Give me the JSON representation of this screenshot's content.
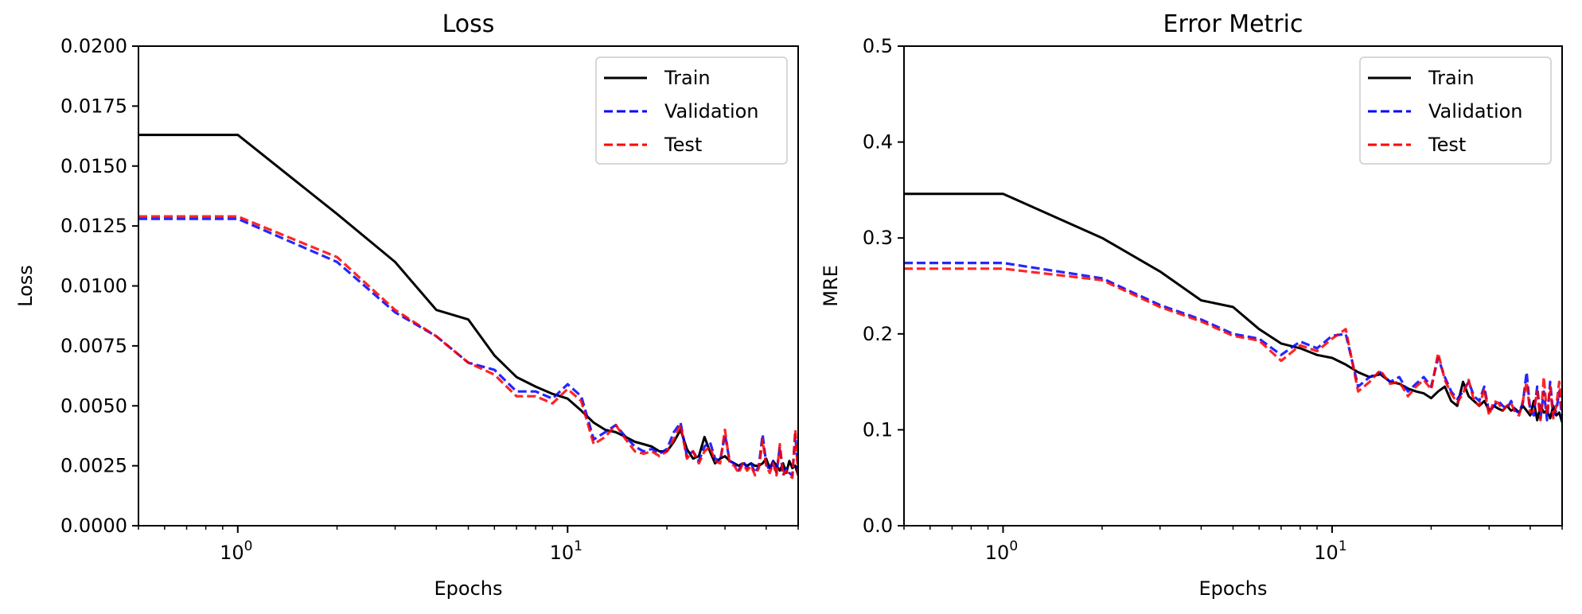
{
  "chart_data": [
    {
      "type": "line",
      "title": "Loss",
      "xlabel": "Epochs",
      "ylabel": "Loss",
      "xscale": "log",
      "xlim": [
        0.5,
        50
      ],
      "ylim": [
        0,
        0.02
      ],
      "yticks": [
        0.0,
        0.0025,
        0.005,
        0.0075,
        0.01,
        0.0125,
        0.015,
        0.0175,
        0.02
      ],
      "ytick_labels": [
        "0.0000",
        "0.0025",
        "0.0050",
        "0.0075",
        "0.0100",
        "0.0125",
        "0.0150",
        "0.0175",
        "0.0200"
      ],
      "xticks": [
        1,
        10
      ],
      "xtick_labels": [
        {
          "base": "10",
          "exp": "0"
        },
        {
          "base": "10",
          "exp": "1"
        }
      ],
      "grid": false,
      "legend": "top-right",
      "series": [
        {
          "name": "Train",
          "color": "#000000",
          "style": "solid",
          "x": [
            0.5,
            1,
            2,
            3,
            4,
            5,
            6,
            7,
            8,
            9,
            10,
            11,
            12,
            13,
            14,
            15,
            16,
            17,
            18,
            19,
            20,
            21,
            22,
            23,
            24,
            25,
            26,
            27,
            28,
            29,
            30,
            31,
            32,
            33,
            34,
            35,
            36,
            37,
            38,
            39,
            40,
            41,
            42,
            43,
            44,
            45,
            46,
            47,
            48,
            49,
            50
          ],
          "y": [
            0.0163,
            0.0163,
            0.013,
            0.011,
            0.009,
            0.0086,
            0.0071,
            0.0062,
            0.0058,
            0.0055,
            0.0053,
            0.0048,
            0.0043,
            0.004,
            0.0039,
            0.0037,
            0.0035,
            0.0034,
            0.0033,
            0.0031,
            0.0031,
            0.0035,
            0.004,
            0.0032,
            0.0028,
            0.0029,
            0.0037,
            0.0031,
            0.0026,
            0.0028,
            0.0029,
            0.0027,
            0.0026,
            0.0025,
            0.0026,
            0.0025,
            0.0026,
            0.0025,
            0.0025,
            0.0026,
            0.0028,
            0.0024,
            0.0027,
            0.0025,
            0.0023,
            0.0026,
            0.0022,
            0.0027,
            0.0024,
            0.0025,
            0.0021
          ]
        },
        {
          "name": "Validation",
          "color": "#0000ff",
          "style": "dashed",
          "x": [
            0.5,
            1,
            2,
            3,
            4,
            5,
            6,
            7,
            8,
            9,
            10,
            11,
            12,
            13,
            14,
            15,
            16,
            17,
            18,
            19,
            20,
            21,
            22,
            23,
            24,
            25,
            26,
            27,
            28,
            29,
            30,
            31,
            32,
            33,
            34,
            35,
            36,
            37,
            38,
            39,
            40,
            41,
            42,
            43,
            44,
            45,
            46,
            47,
            48,
            49,
            50
          ],
          "y": [
            0.0128,
            0.0128,
            0.011,
            0.0089,
            0.0079,
            0.0068,
            0.0065,
            0.0056,
            0.0056,
            0.0053,
            0.0059,
            0.0054,
            0.0036,
            0.0039,
            0.0042,
            0.0037,
            0.0033,
            0.0031,
            0.0032,
            0.003,
            0.0032,
            0.0039,
            0.0043,
            0.0029,
            0.0031,
            0.0027,
            0.0033,
            0.0035,
            0.0028,
            0.0027,
            0.0038,
            0.0027,
            0.0026,
            0.0023,
            0.0027,
            0.0024,
            0.0026,
            0.0022,
            0.0025,
            0.0038,
            0.0026,
            0.0023,
            0.0027,
            0.0022,
            0.0033,
            0.0021,
            0.0024,
            0.0022,
            0.0021,
            0.0038,
            0.0022
          ]
        },
        {
          "name": "Test",
          "color": "#ff0000",
          "style": "dashed",
          "x": [
            0.5,
            1,
            2,
            3,
            4,
            5,
            6,
            7,
            8,
            9,
            10,
            11,
            12,
            13,
            14,
            15,
            16,
            17,
            18,
            19,
            20,
            21,
            22,
            23,
            24,
            25,
            26,
            27,
            28,
            29,
            30,
            31,
            32,
            33,
            34,
            35,
            36,
            37,
            38,
            39,
            40,
            41,
            42,
            43,
            44,
            45,
            46,
            47,
            48,
            49,
            50
          ],
          "y": [
            0.0129,
            0.0129,
            0.0112,
            0.009,
            0.0079,
            0.0068,
            0.0063,
            0.0054,
            0.0054,
            0.0051,
            0.0057,
            0.0052,
            0.0034,
            0.0037,
            0.0042,
            0.0036,
            0.0031,
            0.003,
            0.0031,
            0.0029,
            0.0031,
            0.0036,
            0.0042,
            0.0028,
            0.0031,
            0.0026,
            0.0031,
            0.0033,
            0.0027,
            0.0026,
            0.004,
            0.0026,
            0.0025,
            0.0022,
            0.0026,
            0.0023,
            0.0025,
            0.0021,
            0.0024,
            0.0036,
            0.0025,
            0.0022,
            0.0026,
            0.0021,
            0.0034,
            0.0021,
            0.0023,
            0.0021,
            0.002,
            0.004,
            0.0021
          ]
        }
      ]
    },
    {
      "type": "line",
      "title": "Error Metric",
      "xlabel": "Epochs",
      "ylabel": "MRE",
      "xscale": "log",
      "xlim": [
        0.5,
        50
      ],
      "ylim": [
        0,
        0.5
      ],
      "yticks": [
        0.0,
        0.1,
        0.2,
        0.3,
        0.4,
        0.5
      ],
      "ytick_labels": [
        "0.0",
        "0.1",
        "0.2",
        "0.3",
        "0.4",
        "0.5"
      ],
      "xticks": [
        1,
        10
      ],
      "xtick_labels": [
        {
          "base": "10",
          "exp": "0"
        },
        {
          "base": "10",
          "exp": "1"
        }
      ],
      "grid": false,
      "legend": "top-right",
      "series": [
        {
          "name": "Train",
          "color": "#000000",
          "style": "solid",
          "x": [
            0.5,
            1,
            2,
            3,
            4,
            5,
            6,
            7,
            8,
            9,
            10,
            11,
            12,
            13,
            14,
            15,
            16,
            17,
            18,
            19,
            20,
            21,
            22,
            23,
            24,
            25,
            26,
            27,
            28,
            29,
            30,
            31,
            32,
            33,
            34,
            35,
            36,
            37,
            38,
            39,
            40,
            41,
            42,
            43,
            44,
            45,
            46,
            47,
            48,
            49,
            50
          ],
          "y": [
            0.346,
            0.346,
            0.3,
            0.265,
            0.235,
            0.228,
            0.205,
            0.19,
            0.185,
            0.178,
            0.175,
            0.168,
            0.16,
            0.155,
            0.158,
            0.15,
            0.148,
            0.143,
            0.14,
            0.138,
            0.133,
            0.14,
            0.145,
            0.13,
            0.125,
            0.15,
            0.135,
            0.13,
            0.125,
            0.13,
            0.12,
            0.125,
            0.122,
            0.12,
            0.125,
            0.12,
            0.122,
            0.118,
            0.125,
            0.12,
            0.115,
            0.13,
            0.11,
            0.125,
            0.118,
            0.12,
            0.112,
            0.125,
            0.115,
            0.118,
            0.108
          ]
        },
        {
          "name": "Validation",
          "color": "#0000ff",
          "style": "dashed",
          "x": [
            0.5,
            1,
            2,
            3,
            4,
            5,
            6,
            7,
            8,
            9,
            10,
            11,
            12,
            13,
            14,
            15,
            16,
            17,
            18,
            19,
            20,
            21,
            22,
            23,
            24,
            25,
            26,
            27,
            28,
            29,
            30,
            31,
            32,
            33,
            34,
            35,
            36,
            37,
            38,
            39,
            40,
            41,
            42,
            43,
            44,
            45,
            46,
            47,
            48,
            49,
            50
          ],
          "y": [
            0.274,
            0.274,
            0.258,
            0.23,
            0.215,
            0.2,
            0.195,
            0.178,
            0.192,
            0.185,
            0.198,
            0.2,
            0.145,
            0.155,
            0.16,
            0.15,
            0.155,
            0.14,
            0.148,
            0.155,
            0.145,
            0.175,
            0.155,
            0.14,
            0.132,
            0.14,
            0.15,
            0.135,
            0.13,
            0.145,
            0.118,
            0.125,
            0.13,
            0.125,
            0.122,
            0.13,
            0.12,
            0.118,
            0.128,
            0.16,
            0.12,
            0.115,
            0.145,
            0.112,
            0.14,
            0.11,
            0.15,
            0.115,
            0.12,
            0.14,
            0.112
          ]
        },
        {
          "name": "Test",
          "color": "#ff0000",
          "style": "dashed",
          "x": [
            0.5,
            1,
            2,
            3,
            4,
            5,
            6,
            7,
            8,
            9,
            10,
            11,
            12,
            13,
            14,
            15,
            16,
            17,
            18,
            19,
            20,
            21,
            22,
            23,
            24,
            25,
            26,
            27,
            28,
            29,
            30,
            31,
            32,
            33,
            34,
            35,
            36,
            37,
            38,
            39,
            40,
            41,
            42,
            43,
            44,
            45,
            46,
            47,
            48,
            49,
            50
          ],
          "y": [
            0.268,
            0.268,
            0.256,
            0.228,
            0.213,
            0.198,
            0.193,
            0.172,
            0.188,
            0.182,
            0.195,
            0.205,
            0.14,
            0.15,
            0.162,
            0.148,
            0.15,
            0.135,
            0.145,
            0.152,
            0.142,
            0.18,
            0.152,
            0.138,
            0.128,
            0.138,
            0.152,
            0.13,
            0.125,
            0.142,
            0.115,
            0.13,
            0.128,
            0.12,
            0.125,
            0.128,
            0.118,
            0.115,
            0.13,
            0.15,
            0.118,
            0.12,
            0.14,
            0.11,
            0.155,
            0.115,
            0.145,
            0.112,
            0.125,
            0.15,
            0.118
          ]
        }
      ]
    }
  ]
}
